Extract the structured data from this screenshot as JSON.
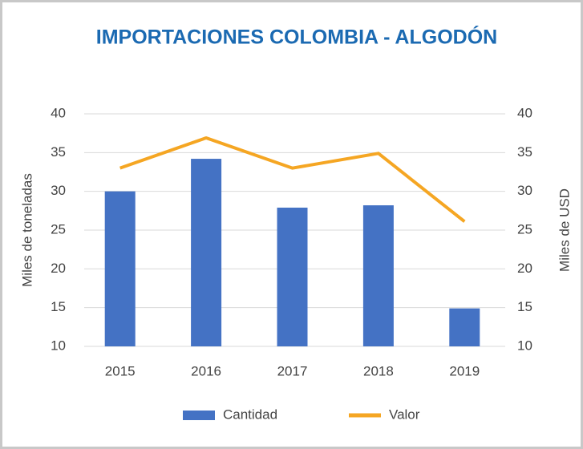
{
  "chart_data": {
    "type": "bar_line",
    "title": "IMPORTACIONES COLOMBIA - ALGODÓN",
    "y_label": "Miles de toneladas",
    "y2_label": "Miles de USD",
    "categories": [
      "2015",
      "2016",
      "2017",
      "2018",
      "2019"
    ],
    "series": [
      {
        "name": "Cantidad",
        "type": "bar",
        "color": "#4472c4",
        "values": [
          30.0,
          34.2,
          27.9,
          28.2,
          14.9
        ]
      },
      {
        "name": "Valor",
        "type": "line",
        "color": "#f5a623",
        "axis": "y2",
        "values": [
          33.0,
          36.9,
          33.0,
          34.9,
          26.1
        ]
      }
    ],
    "ylim": [
      10,
      40
    ],
    "yticks": [
      10,
      15,
      20,
      25,
      30,
      35,
      40
    ],
    "y2lim": [
      10,
      40
    ],
    "y2ticks": [
      10,
      15,
      20,
      25,
      30,
      35,
      40
    ],
    "grid": true,
    "legend": "bottom"
  }
}
